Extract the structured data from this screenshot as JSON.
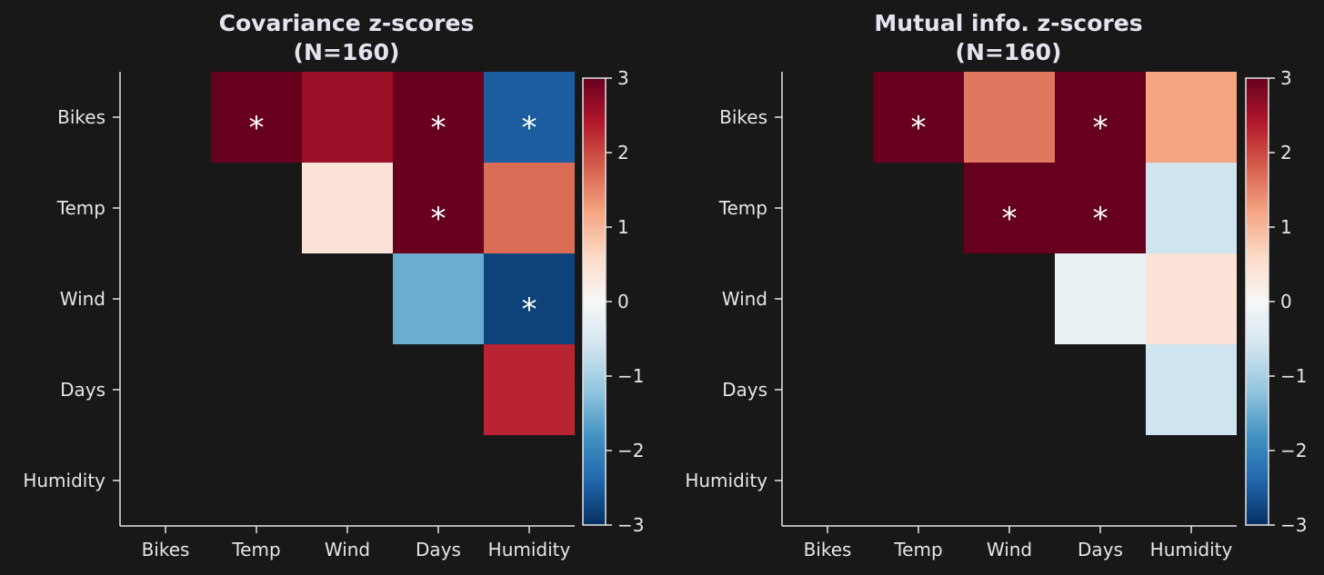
{
  "chart_data": [
    {
      "type": "heatmap",
      "title": "Covariance z-scores",
      "subtitle": "(N=160)",
      "x_categories": [
        "Bikes",
        "Temp",
        "Wind",
        "Days",
        "Humidity"
      ],
      "y_categories": [
        "Bikes",
        "Temp",
        "Wind",
        "Days",
        "Humidity"
      ],
      "colorbar": {
        "range": [
          -3,
          3
        ],
        "ticks": [
          "3",
          "2",
          "1",
          "0",
          "−1",
          "−2",
          "−3"
        ],
        "tick_values": [
          3,
          2,
          1,
          0,
          -1,
          -2,
          -3
        ],
        "colormap": "RdBu_r"
      },
      "cells": [
        {
          "row": 0,
          "col": 1,
          "value": 3.0,
          "marker": "*"
        },
        {
          "row": 0,
          "col": 2,
          "value": 2.6
        },
        {
          "row": 0,
          "col": 3,
          "value": 3.0,
          "marker": "*"
        },
        {
          "row": 0,
          "col": 4,
          "value": -2.5,
          "marker": "*"
        },
        {
          "row": 1,
          "col": 2,
          "value": 0.4
        },
        {
          "row": 1,
          "col": 3,
          "value": 3.0,
          "marker": "*"
        },
        {
          "row": 1,
          "col": 4,
          "value": 1.7
        },
        {
          "row": 2,
          "col": 3,
          "value": -1.5
        },
        {
          "row": 2,
          "col": 4,
          "value": -2.8,
          "marker": "*"
        },
        {
          "row": 3,
          "col": 4,
          "value": 2.3
        }
      ]
    },
    {
      "type": "heatmap",
      "title": "Mutual info. z-scores",
      "subtitle": "(N=160)",
      "x_categories": [
        "Bikes",
        "Temp",
        "Wind",
        "Days",
        "Humidity"
      ],
      "y_categories": [
        "Bikes",
        "Temp",
        "Wind",
        "Days",
        "Humidity"
      ],
      "colorbar": {
        "range": [
          -3,
          3
        ],
        "ticks": [
          "3",
          "2",
          "1",
          "0",
          "−1",
          "−2",
          "−3"
        ],
        "tick_values": [
          3,
          2,
          1,
          0,
          -1,
          -2,
          -3
        ],
        "colormap": "RdBu_r"
      },
      "cells": [
        {
          "row": 0,
          "col": 1,
          "value": 3.0,
          "marker": "*"
        },
        {
          "row": 0,
          "col": 2,
          "value": 1.6
        },
        {
          "row": 0,
          "col": 3,
          "value": 3.0,
          "marker": "*"
        },
        {
          "row": 0,
          "col": 4,
          "value": 1.2
        },
        {
          "row": 1,
          "col": 2,
          "value": 3.0,
          "marker": "*"
        },
        {
          "row": 1,
          "col": 3,
          "value": 3.0,
          "marker": "*"
        },
        {
          "row": 1,
          "col": 4,
          "value": -0.6
        },
        {
          "row": 2,
          "col": 3,
          "value": -0.2
        },
        {
          "row": 2,
          "col": 4,
          "value": 0.4
        },
        {
          "row": 3,
          "col": 4,
          "value": -0.6
        }
      ]
    }
  ],
  "colors": {
    "background": "#181818",
    "text": "#e6e6e6",
    "title": "#e4e4ee"
  }
}
